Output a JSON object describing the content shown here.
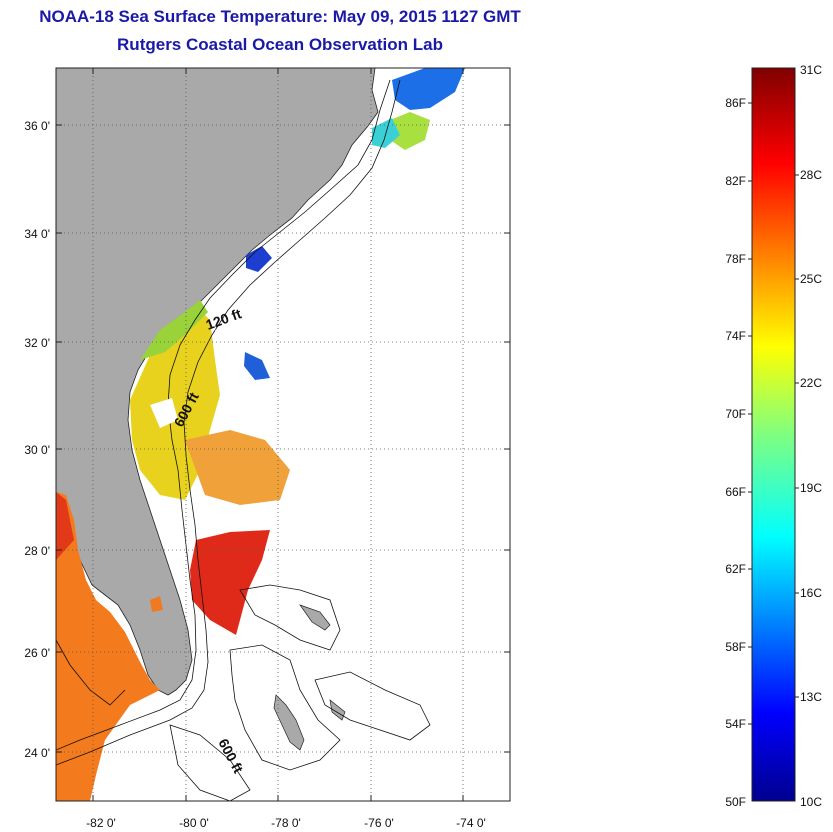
{
  "title": "NOAA-18 Sea Surface Temperature:  May 09, 2015 1127 GMT",
  "subtitle": "Rutgers Coastal Ocean Observation Lab",
  "map": {
    "lat_labels": [
      "36 0'",
      "34 0'",
      "32 0'",
      "30 0'",
      "28 0'",
      "26 0'",
      "24 0'"
    ],
    "lon_labels": [
      "-82 0'",
      "-80 0'",
      "-78 0'",
      "-76 0'",
      "-74 0'"
    ],
    "contour_labels": [
      "120 ft",
      "600 ft",
      "600 ft"
    ],
    "land_color": "#a9a9a9"
  },
  "colorbar": {
    "fahrenheit_labels": [
      "86F",
      "82F",
      "78F",
      "74F",
      "70F",
      "66F",
      "62F",
      "58F",
      "54F",
      "50F"
    ],
    "celsius_labels": [
      "31C",
      "28C",
      "25C",
      "22C",
      "19C",
      "16C",
      "13C",
      "10C"
    ],
    "range_celsius": [
      10,
      31
    ],
    "colormap": "jet"
  }
}
